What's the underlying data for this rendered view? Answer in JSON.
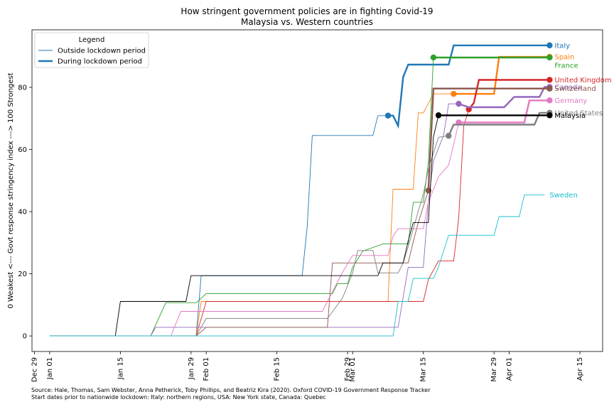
{
  "chart_data": {
    "type": "line",
    "title": "How stringent government policies are in fighting Covid-19",
    "subtitle": "Malaysia vs. Western countries",
    "xlabel": "",
    "ylabel": "0 Weakest <--- Govt response stringency index ---> 100 Strongest",
    "x_range_days_from_dec29": [
      -0.5,
      112.5
    ],
    "x_ticks": [
      {
        "label": "Dec 29",
        "day": 0
      },
      {
        "label": "Jan 01",
        "day": 3
      },
      {
        "label": "Jan 15",
        "day": 17
      },
      {
        "label": "Jan 29",
        "day": 31
      },
      {
        "label": "Feb 01",
        "day": 34
      },
      {
        "label": "Feb 15",
        "day": 48
      },
      {
        "label": "Feb 29",
        "day": 62
      },
      {
        "label": "Mar 01",
        "day": 63
      },
      {
        "label": "Mar 15",
        "day": 77
      },
      {
        "label": "Mar 29",
        "day": 91
      },
      {
        "label": "Apr 01",
        "day": 94
      },
      {
        "label": "Apr 15",
        "day": 108
      }
    ],
    "ylim": [
      -5,
      98.5
    ],
    "y_ticks": [
      0,
      20,
      40,
      60,
      80
    ],
    "grid": false,
    "legend": {
      "title": "Legend",
      "position": "top-left",
      "entries": [
        "Outside lockdown period",
        "During lockdown period"
      ]
    },
    "series": [
      {
        "name": "Italy",
        "color": "#1f77b4",
        "lockdown_start": "Mar 08",
        "end_label": "Italy",
        "points": [
          [
            "Jan 01",
            0
          ],
          [
            "Jan 30",
            0
          ],
          [
            "Jan 31",
            19.4
          ],
          [
            "Feb 20",
            19.4
          ],
          [
            "Feb 21",
            35.2
          ],
          [
            "Feb 22",
            64.5
          ],
          [
            "Mar 05",
            64.5
          ],
          [
            "Mar 06",
            70.9
          ],
          [
            "Mar 08",
            70.9
          ],
          [
            "Mar 09",
            70.9
          ],
          [
            "Mar 10",
            67.6
          ],
          [
            "Mar 11",
            83.3
          ],
          [
            "Mar 12",
            87.3
          ],
          [
            "Mar 20",
            87.3
          ],
          [
            "Mar 21",
            93.5
          ],
          [
            "Apr 09",
            93.5
          ]
        ]
      },
      {
        "name": "Spain",
        "color": "#ff7f0e",
        "lockdown_start": "Mar 21",
        "end_label": "Spain",
        "points": [
          [
            "Jan 01",
            0
          ],
          [
            "Jan 30",
            0
          ],
          [
            "Jan 31",
            11.1
          ],
          [
            "Mar 08",
            11.1
          ],
          [
            "Mar 09",
            47.2
          ],
          [
            "Mar 13",
            47.2
          ],
          [
            "Mar 14",
            71.8
          ],
          [
            "Mar 15",
            71.8
          ],
          [
            "Mar 17",
            77.9
          ],
          [
            "Mar 21",
            77.9
          ],
          [
            "Mar 29",
            77.9
          ],
          [
            "Mar 30",
            89.8
          ],
          [
            "Apr 09",
            89.8
          ]
        ]
      },
      {
        "name": "France",
        "color": "#2ca02c",
        "lockdown_start": "Mar 17",
        "end_label": "France",
        "points": [
          [
            "Jan 01",
            0
          ],
          [
            "Jan 21",
            0
          ],
          [
            "Jan 24",
            10.7
          ],
          [
            "Jan 30",
            10.7
          ],
          [
            "Feb 01",
            13.6
          ],
          [
            "Feb 26",
            13.6
          ],
          [
            "Feb 27",
            16.8
          ],
          [
            "Feb 29",
            16.8
          ],
          [
            "Mar 01",
            22.1
          ],
          [
            "Mar 03",
            27.3
          ],
          [
            "Mar 07",
            29.6
          ],
          [
            "Mar 12",
            29.6
          ],
          [
            "Mar 13",
            43.0
          ],
          [
            "Mar 15",
            43.0
          ],
          [
            "Mar 16",
            56.0
          ],
          [
            "Mar 17",
            89.6
          ],
          [
            "Apr 09",
            89.6
          ]
        ]
      },
      {
        "name": "United Kingdom",
        "color": "#d62728",
        "lockdown_start": "Mar 24",
        "end_label": "United Kingdom",
        "points": [
          [
            "Jan 01",
            0
          ],
          [
            "Jan 30",
            0
          ],
          [
            "Feb 01",
            11.1
          ],
          [
            "Mar 15",
            11.1
          ],
          [
            "Mar 16",
            18.2
          ],
          [
            "Mar 18",
            24.1
          ],
          [
            "Mar 21",
            24.1
          ],
          [
            "Mar 22",
            38.0
          ],
          [
            "Mar 23",
            67.6
          ],
          [
            "Mar 24",
            72.9
          ],
          [
            "Mar 25",
            75.0
          ],
          [
            "Mar 26",
            82.4
          ],
          [
            "Apr 09",
            82.4
          ]
        ]
      },
      {
        "name": "Canada",
        "color": "#9467bd",
        "lockdown_start": "Mar 22",
        "end_label": "Canada",
        "points": [
          [
            "Jan 01",
            0
          ],
          [
            "Jan 21",
            0
          ],
          [
            "Jan 22",
            2.8
          ],
          [
            "Mar 10",
            2.8
          ],
          [
            "Mar 12",
            22.1
          ],
          [
            "Mar 15",
            22.1
          ],
          [
            "Mar 16",
            43.3
          ],
          [
            "Mar 17",
            56.3
          ],
          [
            "Mar 19",
            64.5
          ],
          [
            "Mar 20",
            74.7
          ],
          [
            "Mar 22",
            74.7
          ],
          [
            "Mar 24",
            73.6
          ],
          [
            "Mar 31",
            73.6
          ],
          [
            "Apr 02",
            76.9
          ],
          [
            "Apr 07",
            76.9
          ],
          [
            "Apr 08",
            80.1
          ],
          [
            "Apr 09",
            80.1
          ]
        ]
      },
      {
        "name": "Switzerland",
        "color": "#8c564b",
        "lockdown_start": "Mar 16",
        "end_label": "Switzerland",
        "points": [
          [
            "Jan 01",
            0
          ],
          [
            "Jan 30",
            0
          ],
          [
            "Feb 01",
            2.8
          ],
          [
            "Feb 25",
            2.8
          ],
          [
            "Feb 26",
            23.5
          ],
          [
            "Mar 12",
            23.5
          ],
          [
            "Mar 13",
            30.4
          ],
          [
            "Mar 14",
            36.5
          ],
          [
            "Mar 16",
            46.8
          ],
          [
            "Mar 17",
            79.6
          ],
          [
            "Apr 09",
            79.6
          ]
        ]
      },
      {
        "name": "Germany",
        "color": "#e377c2",
        "lockdown_start": "Mar 22",
        "end_label": "Germany",
        "points": [
          [
            "Jan 01",
            0
          ],
          [
            "Jan 25",
            0
          ],
          [
            "Jan 27",
            7.9
          ],
          [
            "Feb 24",
            7.9
          ],
          [
            "Feb 28",
            20.5
          ],
          [
            "Mar 01",
            25.9
          ],
          [
            "Mar 08",
            25.9
          ],
          [
            "Mar 09",
            32.1
          ],
          [
            "Mar 10",
            34.5
          ],
          [
            "Mar 15",
            34.5
          ],
          [
            "Mar 16",
            43.3
          ],
          [
            "Mar 17",
            47.1
          ],
          [
            "Mar 18",
            51.2
          ],
          [
            "Mar 20",
            55.0
          ],
          [
            "Mar 21",
            61.6
          ],
          [
            "Mar 22",
            68.7
          ],
          [
            "Apr 04",
            68.7
          ],
          [
            "Apr 05",
            75.8
          ],
          [
            "Apr 09",
            75.8
          ]
        ]
      },
      {
        "name": "United States",
        "color": "#7f7f7f",
        "lockdown_start": "Mar 20",
        "end_label": "United States",
        "points": [
          [
            "Jan 01",
            0
          ],
          [
            "Jan 30",
            0
          ],
          [
            "Feb 01",
            5.6
          ],
          [
            "Feb 25",
            5.6
          ],
          [
            "Feb 28",
            12.2
          ],
          [
            "Mar 01",
            20.3
          ],
          [
            "Mar 02",
            27.5
          ],
          [
            "Mar 05",
            27.5
          ],
          [
            "Mar 06",
            20.3
          ],
          [
            "Mar 10",
            20.3
          ],
          [
            "Mar 11",
            23.5
          ],
          [
            "Mar 12",
            28.7
          ],
          [
            "Mar 14",
            40.2
          ],
          [
            "Mar 15",
            45.6
          ],
          [
            "Mar 16",
            53.7
          ],
          [
            "Mar 18",
            63.9
          ],
          [
            "Mar 20",
            64.4
          ],
          [
            "Mar 21",
            68.0
          ],
          [
            "Mar 22",
            68.0
          ],
          [
            "Apr 06",
            68.0
          ],
          [
            "Apr 07",
            71.8
          ],
          [
            "Apr 09",
            71.8
          ]
        ]
      },
      {
        "name": "Malaysia",
        "color": "#000000",
        "lockdown_start": "Mar 18",
        "end_label": "Malaysia",
        "points": [
          [
            "Jan 01",
            0
          ],
          [
            "Jan 14",
            0
          ],
          [
            "Jan 15",
            11.1
          ],
          [
            "Jan 28",
            11.1
          ],
          [
            "Jan 29",
            19.4
          ],
          [
            "Mar 06",
            19.4
          ],
          [
            "Mar 07",
            23.5
          ],
          [
            "Mar 11",
            23.5
          ],
          [
            "Mar 12",
            30.6
          ],
          [
            "Mar 13",
            36.5
          ],
          [
            "Mar 16",
            36.5
          ],
          [
            "Mar 17",
            64.0
          ],
          [
            "Mar 18",
            71.0
          ],
          [
            "Apr 09",
            71.0
          ]
        ]
      },
      {
        "name": "Sweden",
        "color": "#17becf",
        "lockdown_start": "",
        "end_label": "Sweden",
        "points": [
          [
            "Jan 01",
            0
          ],
          [
            "Mar 09",
            0
          ],
          [
            "Mar 10",
            11.1
          ],
          [
            "Mar 12",
            11.1
          ],
          [
            "Mar 13",
            18.5
          ],
          [
            "Mar 17",
            18.5
          ],
          [
            "Mar 18",
            22.2
          ],
          [
            "Mar 20",
            32.4
          ],
          [
            "Mar 29",
            32.4
          ],
          [
            "Mar 30",
            38.4
          ],
          [
            "Apr 03",
            38.4
          ],
          [
            "Apr 04",
            45.4
          ],
          [
            "Apr 08",
            45.4
          ]
        ]
      }
    ]
  },
  "footer": {
    "source": "Source: Hale, Thomas, Sam Webster, Anna Petherick, Toby Phillips, and Beatriz Kira (2020). Oxford COVID-19 Government Response Tracker",
    "note": "Start dates prior to nationwide lockdown: Italy: northern regions, USA: New York state, Canada: Quebec"
  }
}
